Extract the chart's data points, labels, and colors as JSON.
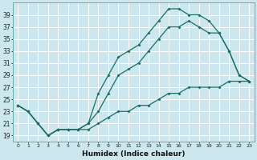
{
  "xlabel": "Humidex (Indice chaleur)",
  "bg_color": "#cce8ee",
  "grid_color": "#b0d8e0",
  "line_color": "#1a6e66",
  "x_ticks": [
    0,
    1,
    2,
    3,
    4,
    5,
    6,
    7,
    8,
    9,
    10,
    11,
    12,
    13,
    14,
    15,
    16,
    17,
    18,
    19,
    20,
    21,
    22,
    23
  ],
  "y_ticks": [
    19,
    21,
    23,
    25,
    27,
    29,
    31,
    33,
    35,
    37,
    39
  ],
  "xlim": [
    -0.5,
    23.5
  ],
  "ylim": [
    18.0,
    41.0
  ],
  "line1_x": [
    0,
    1,
    2,
    3,
    4,
    5,
    6,
    7,
    8,
    9,
    10,
    11,
    12,
    13,
    14,
    15,
    16,
    17,
    18,
    19,
    20,
    21,
    22,
    23
  ],
  "line1_y": [
    24,
    23,
    21,
    19,
    20,
    20,
    20,
    21,
    26,
    29,
    32,
    33,
    34,
    36,
    38,
    40,
    40,
    39,
    39,
    38,
    36,
    33,
    29,
    28
  ],
  "line2_x": [
    0,
    1,
    2,
    3,
    4,
    5,
    6,
    7,
    8,
    9,
    10,
    11,
    12,
    13,
    14,
    15,
    16,
    17,
    18,
    19,
    20,
    21,
    22,
    23
  ],
  "line2_y": [
    24,
    23,
    21,
    19,
    20,
    20,
    20,
    21,
    23,
    26,
    29,
    30,
    31,
    33,
    35,
    37,
    37,
    38,
    37,
    36,
    36,
    33,
    29,
    28
  ],
  "line3_x": [
    0,
    1,
    2,
    3,
    4,
    5,
    6,
    7,
    8,
    9,
    10,
    11,
    12,
    13,
    14,
    15,
    16,
    17,
    18,
    19,
    20,
    21,
    22,
    23
  ],
  "line3_y": [
    24,
    23,
    21,
    19,
    20,
    20,
    20,
    20,
    21,
    22,
    23,
    23,
    24,
    24,
    25,
    26,
    26,
    27,
    27,
    27,
    27,
    28,
    28,
    28
  ]
}
